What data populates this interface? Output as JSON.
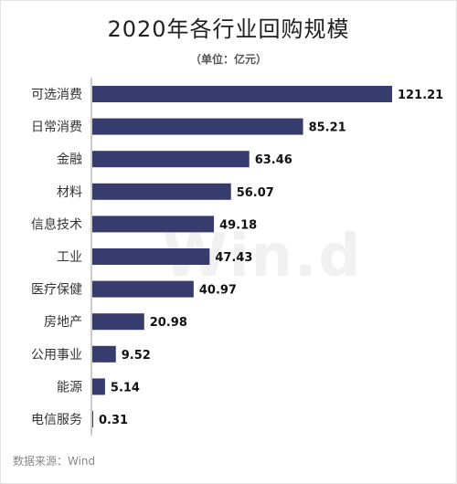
{
  "title": "2020年各行业回购规模",
  "subtitle": "（单位：亿元）",
  "watermark": "Win.d",
  "source": "数据来源：Wind",
  "colors": {
    "bar": "#363c6e",
    "axis": "#9a9a9a",
    "label": "#333333",
    "value": "#111111"
  },
  "chart_data": {
    "type": "bar",
    "orientation": "horizontal",
    "title": "2020年各行业回购规模",
    "subtitle": "（单位：亿元）",
    "xlabel": "",
    "ylabel": "",
    "categories": [
      "可选消费",
      "日常消费",
      "金融",
      "材料",
      "信息技术",
      "工业",
      "医疗保健",
      "房地产",
      "公用事业",
      "能源",
      "电信服务"
    ],
    "values": [
      121.21,
      85.21,
      63.46,
      56.07,
      49.18,
      47.43,
      40.97,
      20.98,
      9.52,
      5.14,
      0.31
    ],
    "value_labels": [
      "121.21",
      "85.21",
      "63.46",
      "56.07",
      "49.18",
      "47.43",
      "40.97",
      "20.98",
      "9.52",
      "5.14",
      "0.31"
    ],
    "xlim": [
      0,
      121.21
    ],
    "grid": false,
    "legend": "none"
  }
}
